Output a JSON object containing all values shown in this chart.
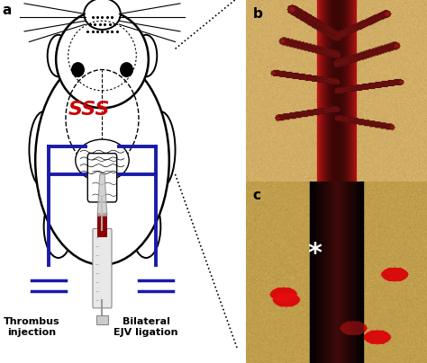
{
  "panel_a_label": "a",
  "panel_b_label": "b",
  "panel_c_label": "c",
  "sss_label": "SSS",
  "thrombus_label": "Thrombus\ninjection",
  "bilateral_label": "Bilateral\nEJV ligation",
  "background_color": "#ffffff",
  "label_fontsize": 11,
  "sss_fontsize": 16,
  "annotation_fontsize": 8,
  "star_color": "white",
  "sss_color": "#cc0000",
  "blue_color": "#1a1aaa",
  "panel_b_bg": "#c8a060",
  "panel_c_bg": "#b89040",
  "vessel_b_color": "#aa1010",
  "vessel_c_color": "#2a0808"
}
